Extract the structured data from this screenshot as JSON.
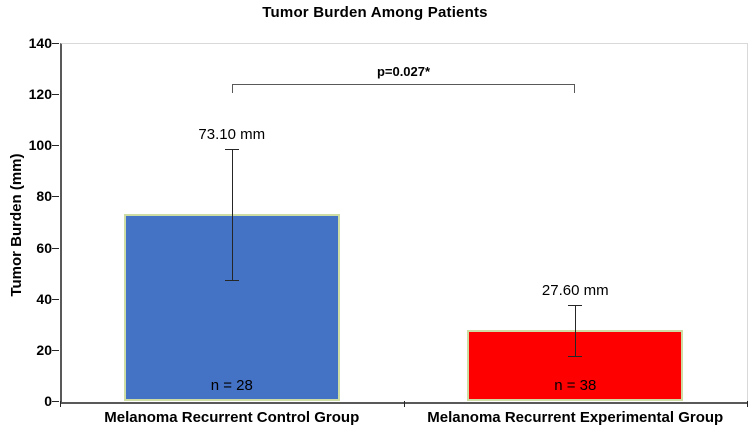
{
  "title": "Tumor Burden Among Patients",
  "chart_data": {
    "type": "bar",
    "title": "Tumor Burden Among Patients",
    "xlabel": "",
    "ylabel": "Tumor Burden (mm)",
    "ylim": [
      0,
      140
    ],
    "ytick_step": 20,
    "grid": false,
    "legend": "none",
    "categories": [
      "Melanoma Recurrent Control Group",
      "Melanoma Recurrent Experimental Group"
    ],
    "values": [
      73.1,
      27.6
    ],
    "value_labels": [
      "73.10 mm",
      "27.60 mm"
    ],
    "n_labels": [
      "n = 28",
      "n = 38"
    ],
    "error_low": [
      47.5,
      17.6
    ],
    "error_high": [
      98.7,
      37.4
    ],
    "bar_colors": [
      "#4472C4",
      "#FF0000"
    ],
    "bar_border_color": "#CDDDA3",
    "axis_color": "#595959",
    "error_bar_color": "#262626",
    "significance": {
      "label": "p=0.027*",
      "from_category": 0,
      "to_category": 1,
      "y": 124
    }
  }
}
